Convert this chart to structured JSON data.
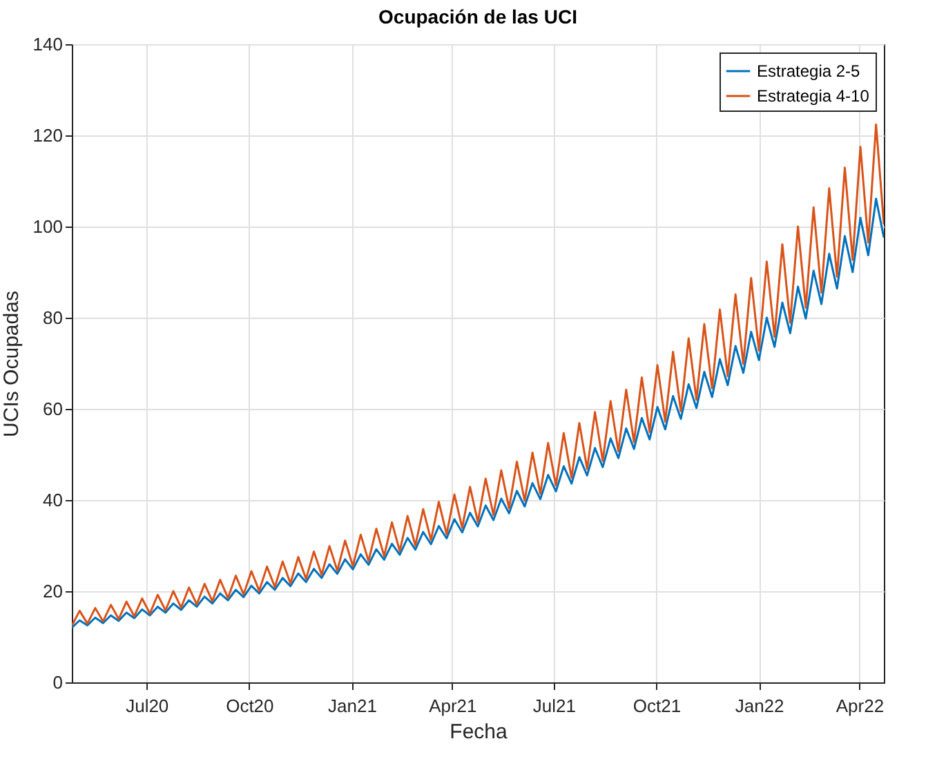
{
  "chart_data": {
    "type": "line",
    "title": "Ocupación de las UCI",
    "xlabel": "Fecha",
    "ylabel": "UCIs Ocupadas",
    "x": [
      "2020-04-25",
      "2020-05-02",
      "2020-05-09",
      "2020-05-16",
      "2020-05-23",
      "2020-05-30",
      "2020-06-06",
      "2020-06-13",
      "2020-06-20",
      "2020-06-27",
      "2020-07-04",
      "2020-07-11",
      "2020-07-18",
      "2020-07-25",
      "2020-08-01",
      "2020-08-08",
      "2020-08-15",
      "2020-08-22",
      "2020-08-29",
      "2020-09-05",
      "2020-09-12",
      "2020-09-19",
      "2020-09-26",
      "2020-10-03",
      "2020-10-10",
      "2020-10-17",
      "2020-10-24",
      "2020-10-31",
      "2020-11-07",
      "2020-11-14",
      "2020-11-21",
      "2020-11-28",
      "2020-12-05",
      "2020-12-12",
      "2020-12-19",
      "2020-12-26",
      "2021-01-02",
      "2021-01-09",
      "2021-01-16",
      "2021-01-23",
      "2021-01-30",
      "2021-02-06",
      "2021-02-13",
      "2021-02-20",
      "2021-02-27",
      "2021-03-06",
      "2021-03-13",
      "2021-03-20",
      "2021-03-27",
      "2021-04-03",
      "2021-04-10",
      "2021-04-17",
      "2021-04-24",
      "2021-05-01",
      "2021-05-08",
      "2021-05-15",
      "2021-05-22",
      "2021-05-29",
      "2021-06-05",
      "2021-06-12",
      "2021-06-19",
      "2021-06-26",
      "2021-07-03",
      "2021-07-10",
      "2021-07-17",
      "2021-07-24",
      "2021-07-31",
      "2021-08-07",
      "2021-08-14",
      "2021-08-21",
      "2021-08-28",
      "2021-09-04",
      "2021-09-11",
      "2021-09-18",
      "2021-09-25",
      "2021-10-02",
      "2021-10-09",
      "2021-10-16",
      "2021-10-23",
      "2021-10-30",
      "2021-11-06",
      "2021-11-13",
      "2021-11-20",
      "2021-11-27",
      "2021-12-04",
      "2021-12-11",
      "2021-12-18",
      "2021-12-25",
      "2022-01-01",
      "2022-01-08",
      "2022-01-15",
      "2022-01-22",
      "2022-01-29",
      "2022-02-05",
      "2022-02-12",
      "2022-02-19",
      "2022-02-26",
      "2022-03-05",
      "2022-03-12",
      "2022-03-19",
      "2022-03-26",
      "2022-04-02",
      "2022-04-09",
      "2022-04-16",
      "2022-04-23"
    ],
    "series": [
      {
        "name": "Estrategia 2-5",
        "color": "#0072bd",
        "values": [
          12.0,
          13.6,
          12.5,
          14.2,
          13.0,
          14.7,
          13.5,
          15.3,
          14.1,
          16.0,
          14.7,
          16.6,
          15.3,
          17.3,
          15.9,
          18.0,
          16.6,
          18.8,
          17.3,
          19.5,
          18.0,
          20.3,
          18.7,
          21.2,
          19.5,
          22.0,
          20.3,
          22.9,
          21.1,
          23.9,
          22.0,
          24.9,
          22.9,
          25.9,
          23.8,
          27.0,
          24.8,
          28.1,
          25.8,
          29.2,
          26.9,
          30.4,
          28.0,
          31.7,
          29.1,
          33.0,
          30.3,
          34.3,
          31.6,
          35.8,
          32.9,
          37.2,
          34.2,
          38.8,
          35.6,
          40.3,
          37.1,
          42.0,
          38.6,
          43.7,
          40.2,
          45.5,
          41.9,
          47.4,
          43.6,
          49.4,
          45.4,
          51.4,
          47.2,
          53.5,
          49.2,
          55.7,
          51.2,
          58.0,
          53.3,
          60.4,
          55.5,
          62.8,
          57.8,
          65.4,
          60.2,
          68.1,
          62.6,
          70.9,
          65.2,
          73.8,
          67.9,
          76.9,
          70.7,
          80.0,
          73.6,
          83.3,
          76.6,
          86.8,
          79.8,
          90.3,
          83.0,
          94.0,
          86.4,
          97.9,
          90.0,
          101.9,
          93.7,
          106.1,
          97.6
        ]
      },
      {
        "name": "Estrategia 4-10",
        "color": "#d95319",
        "values": [
          12.4,
          15.7,
          12.9,
          16.3,
          13.4,
          17.0,
          13.9,
          17.7,
          14.5,
          18.4,
          15.1,
          19.2,
          15.8,
          20.0,
          16.4,
          20.8,
          17.1,
          21.6,
          17.8,
          22.5,
          18.5,
          23.4,
          19.3,
          24.4,
          20.1,
          25.4,
          20.9,
          26.5,
          21.7,
          27.5,
          22.7,
          28.7,
          23.6,
          29.9,
          24.5,
          31.1,
          25.5,
          32.4,
          26.6,
          33.7,
          27.7,
          35.1,
          28.8,
          36.5,
          30.0,
          38.0,
          31.2,
          39.6,
          32.5,
          41.2,
          33.9,
          42.9,
          35.2,
          44.7,
          36.7,
          46.5,
          38.2,
          48.4,
          39.8,
          50.4,
          41.4,
          52.5,
          43.2,
          54.7,
          44.9,
          56.9,
          46.8,
          59.3,
          48.6,
          61.7,
          50.7,
          64.2,
          52.7,
          66.9,
          54.9,
          69.6,
          57.2,
          72.5,
          59.5,
          75.5,
          62.0,
          78.6,
          64.5,
          81.8,
          67.2,
          85.1,
          69.9,
          88.7,
          72.8,
          92.3,
          75.8,
          96.1,
          78.9,
          100.0,
          82.2,
          104.2,
          85.5,
          108.4,
          89.0,
          112.9,
          92.7,
          117.5,
          96.5,
          122.4,
          100.5
        ]
      }
    ],
    "xlim": [
      "2020-04-25",
      "2022-04-23"
    ],
    "xticks": [
      {
        "value": "2020-07-01",
        "label": "Jul20"
      },
      {
        "value": "2020-10-01",
        "label": "Oct20"
      },
      {
        "value": "2021-01-01",
        "label": "Jan21"
      },
      {
        "value": "2021-04-01",
        "label": "Apr21"
      },
      {
        "value": "2021-07-01",
        "label": "Jul21"
      },
      {
        "value": "2021-10-01",
        "label": "Oct21"
      },
      {
        "value": "2022-01-01",
        "label": "Jan22"
      },
      {
        "value": "2022-04-01",
        "label": "Apr22"
      }
    ],
    "ylim": [
      0,
      140
    ],
    "yticks": [
      0,
      20,
      40,
      60,
      80,
      100,
      120,
      140
    ],
    "grid": true,
    "legend": "top right",
    "marker": "none",
    "line_style": "solid"
  }
}
